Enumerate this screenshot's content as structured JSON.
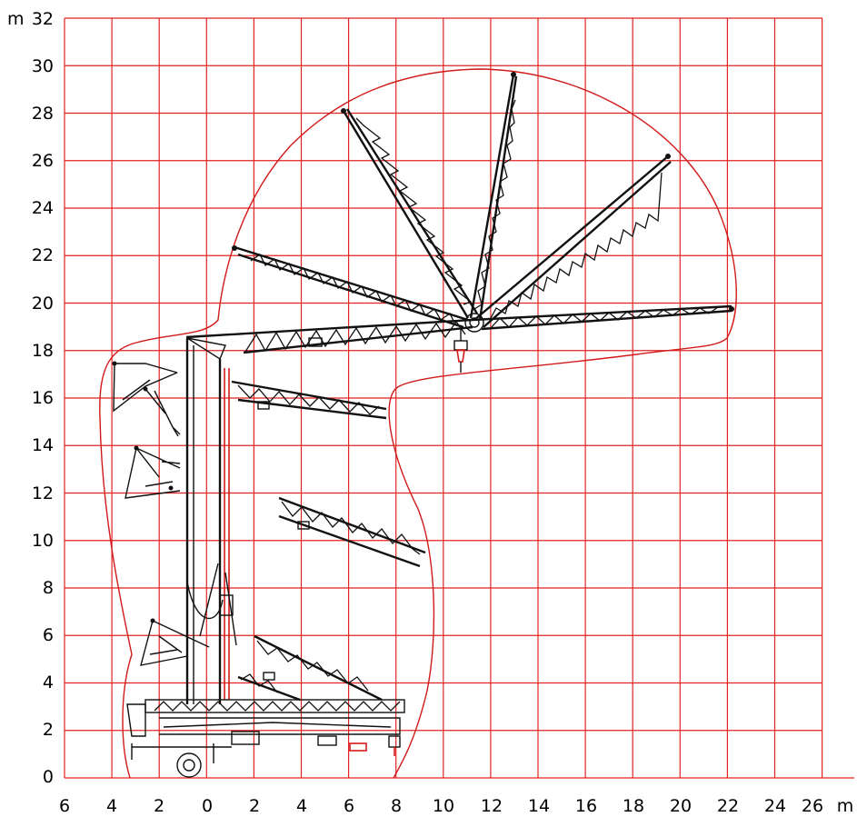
{
  "axes": {
    "x_unit": "m",
    "y_unit": "m",
    "x_tick_labels": [
      "6",
      "4",
      "2",
      "0",
      "2",
      "4",
      "6",
      "8",
      "10",
      "12",
      "14",
      "16",
      "18",
      "20",
      "22",
      "24",
      "26"
    ],
    "y_tick_labels": [
      "0",
      "2",
      "4",
      "6",
      "8",
      "10",
      "12",
      "14",
      "16",
      "18",
      "20",
      "22",
      "24",
      "26",
      "28",
      "30",
      "32"
    ]
  },
  "grid": {
    "visible": true,
    "color": "#e32222"
  },
  "colors": {
    "grid": "#e32222",
    "envelope": "#d21a1a",
    "crane": "#111111"
  }
}
